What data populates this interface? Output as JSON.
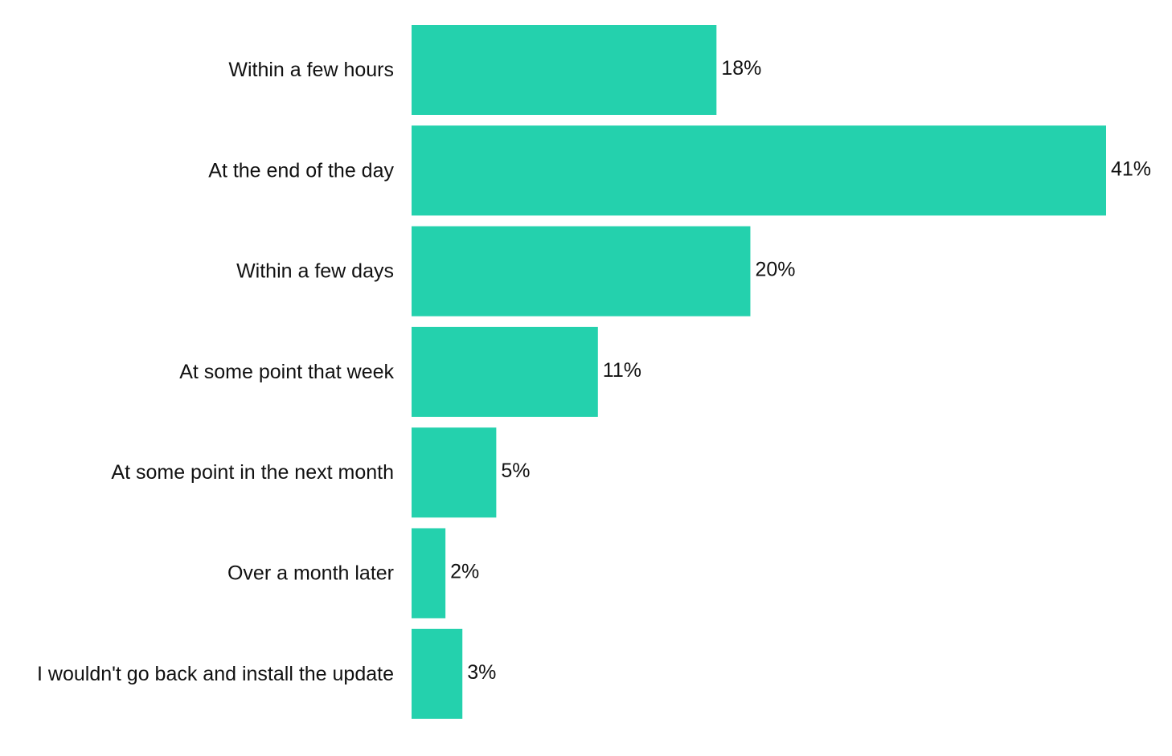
{
  "chart_data": {
    "type": "bar",
    "orientation": "horizontal",
    "categories": [
      "Within a few hours",
      "At the end of the day",
      "Within a few days",
      "At some point that week",
      "At some point in the next month",
      "Over a month later",
      "I wouldn't go back and install the update"
    ],
    "values": [
      18,
      41,
      20,
      11,
      5,
      2,
      3
    ],
    "value_labels": [
      "18%",
      "41%",
      "20%",
      "11%",
      "5%",
      "2%",
      "3%"
    ],
    "unit": "%",
    "title": "",
    "xlabel": "",
    "ylabel": "",
    "xlim": [
      0,
      41
    ],
    "grid": false,
    "bar_color": "#24D1AD"
  }
}
